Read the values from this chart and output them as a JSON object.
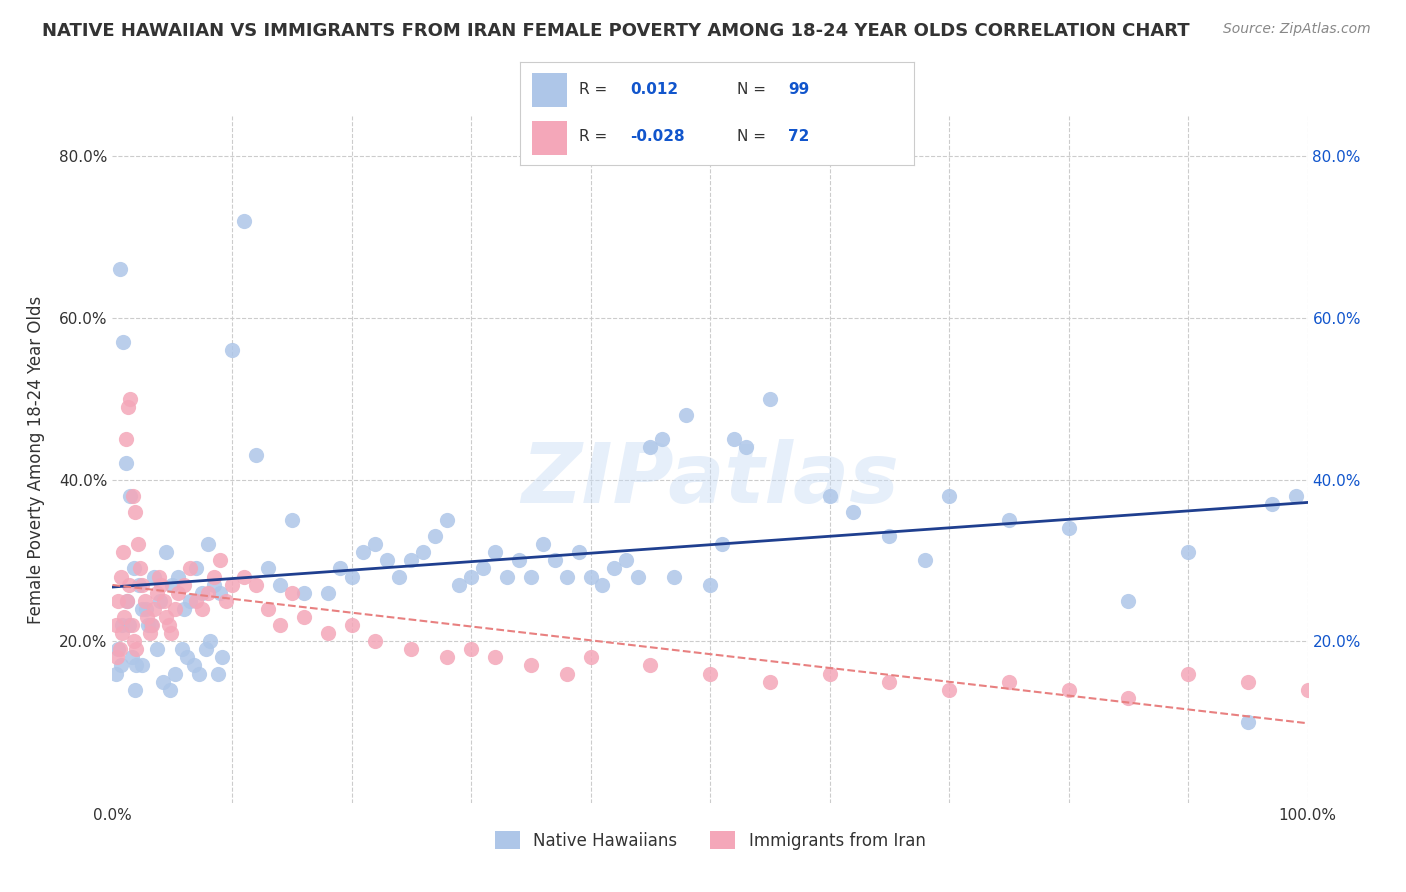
{
  "title": "NATIVE HAWAIIAN VS IMMIGRANTS FROM IRAN FEMALE POVERTY AMONG 18-24 YEAR OLDS CORRELATION CHART",
  "source": "Source: ZipAtlas.com",
  "ylabel": "Female Poverty Among 18-24 Year Olds",
  "xlim": [
    0,
    1
  ],
  "ylim": [
    0,
    0.85
  ],
  "x_ticks": [
    0.0,
    0.1,
    0.2,
    0.3,
    0.4,
    0.5,
    0.6,
    0.7,
    0.8,
    0.9,
    1.0
  ],
  "x_tick_labels": [
    "0.0%",
    "",
    "",
    "",
    "",
    "",
    "",
    "",
    "",
    "",
    "100.0%"
  ],
  "y_ticks": [
    0.0,
    0.2,
    0.4,
    0.6,
    0.8
  ],
  "y_tick_labels": [
    "",
    "20.0%",
    "40.0%",
    "60.0%",
    "80.0%"
  ],
  "color_blue": "#AEC6E8",
  "color_pink": "#F4A7B9",
  "color_blue_line": "#1F3F8F",
  "color_pink_line": "#E88080",
  "color_r_value": "#1155CC",
  "color_text": "#333333",
  "watermark": "ZIPatlas",
  "background_color": "#FFFFFF",
  "grid_color": "#CCCCCC",
  "native_hawaiian_x": [
    0.008,
    0.012,
    0.006,
    0.009,
    0.011,
    0.015,
    0.018,
    0.022,
    0.025,
    0.03,
    0.035,
    0.04,
    0.045,
    0.05,
    0.055,
    0.06,
    0.065,
    0.07,
    0.075,
    0.08,
    0.085,
    0.09,
    0.1,
    0.11,
    0.12,
    0.13,
    0.14,
    0.15,
    0.16,
    0.18,
    0.19,
    0.2,
    0.21,
    0.22,
    0.23,
    0.24,
    0.25,
    0.26,
    0.27,
    0.28,
    0.29,
    0.3,
    0.31,
    0.32,
    0.33,
    0.34,
    0.35,
    0.36,
    0.37,
    0.38,
    0.39,
    0.4,
    0.41,
    0.42,
    0.43,
    0.44,
    0.45,
    0.46,
    0.47,
    0.48,
    0.5,
    0.51,
    0.52,
    0.53,
    0.55,
    0.6,
    0.62,
    0.65,
    0.68,
    0.7,
    0.75,
    0.8,
    0.85,
    0.9,
    0.95,
    0.97,
    0.99,
    0.005,
    0.003,
    0.007,
    0.014,
    0.016,
    0.019,
    0.02,
    0.025,
    0.028,
    0.032,
    0.037,
    0.042,
    0.048,
    0.052,
    0.058,
    0.062,
    0.068,
    0.072,
    0.078,
    0.082,
    0.088,
    0.092
  ],
  "native_hawaiian_y": [
    0.22,
    0.25,
    0.66,
    0.57,
    0.42,
    0.38,
    0.29,
    0.27,
    0.24,
    0.22,
    0.28,
    0.25,
    0.31,
    0.27,
    0.28,
    0.24,
    0.25,
    0.29,
    0.26,
    0.32,
    0.27,
    0.26,
    0.56,
    0.72,
    0.43,
    0.29,
    0.27,
    0.35,
    0.26,
    0.26,
    0.29,
    0.28,
    0.31,
    0.32,
    0.3,
    0.28,
    0.3,
    0.31,
    0.33,
    0.35,
    0.27,
    0.28,
    0.29,
    0.31,
    0.28,
    0.3,
    0.28,
    0.32,
    0.3,
    0.28,
    0.31,
    0.28,
    0.27,
    0.29,
    0.3,
    0.28,
    0.44,
    0.45,
    0.28,
    0.48,
    0.27,
    0.32,
    0.45,
    0.44,
    0.5,
    0.38,
    0.36,
    0.33,
    0.3,
    0.38,
    0.35,
    0.34,
    0.25,
    0.31,
    0.1,
    0.37,
    0.38,
    0.19,
    0.16,
    0.17,
    0.22,
    0.18,
    0.14,
    0.17,
    0.17,
    0.24,
    0.22,
    0.19,
    0.15,
    0.14,
    0.16,
    0.19,
    0.18,
    0.17,
    0.16,
    0.19,
    0.2,
    0.16,
    0.18
  ],
  "iran_x": [
    0.003,
    0.005,
    0.007,
    0.009,
    0.011,
    0.013,
    0.015,
    0.017,
    0.019,
    0.021,
    0.023,
    0.025,
    0.027,
    0.029,
    0.031,
    0.033,
    0.035,
    0.037,
    0.039,
    0.041,
    0.043,
    0.045,
    0.047,
    0.049,
    0.052,
    0.055,
    0.06,
    0.065,
    0.07,
    0.075,
    0.08,
    0.085,
    0.09,
    0.095,
    0.1,
    0.11,
    0.12,
    0.13,
    0.14,
    0.15,
    0.16,
    0.18,
    0.2,
    0.22,
    0.25,
    0.28,
    0.3,
    0.32,
    0.35,
    0.38,
    0.4,
    0.45,
    0.5,
    0.55,
    0.6,
    0.65,
    0.7,
    0.75,
    0.8,
    0.85,
    0.9,
    0.95,
    1.0,
    0.004,
    0.006,
    0.008,
    0.01,
    0.012,
    0.014,
    0.016,
    0.018,
    0.02
  ],
  "iran_y": [
    0.22,
    0.25,
    0.28,
    0.31,
    0.45,
    0.49,
    0.5,
    0.38,
    0.36,
    0.32,
    0.29,
    0.27,
    0.25,
    0.23,
    0.21,
    0.22,
    0.24,
    0.26,
    0.28,
    0.27,
    0.25,
    0.23,
    0.22,
    0.21,
    0.24,
    0.26,
    0.27,
    0.29,
    0.25,
    0.24,
    0.26,
    0.28,
    0.3,
    0.25,
    0.27,
    0.28,
    0.27,
    0.24,
    0.22,
    0.26,
    0.23,
    0.21,
    0.22,
    0.2,
    0.19,
    0.18,
    0.19,
    0.18,
    0.17,
    0.16,
    0.18,
    0.17,
    0.16,
    0.15,
    0.16,
    0.15,
    0.14,
    0.15,
    0.14,
    0.13,
    0.16,
    0.15,
    0.14,
    0.18,
    0.19,
    0.21,
    0.23,
    0.25,
    0.27,
    0.22,
    0.2,
    0.19
  ]
}
